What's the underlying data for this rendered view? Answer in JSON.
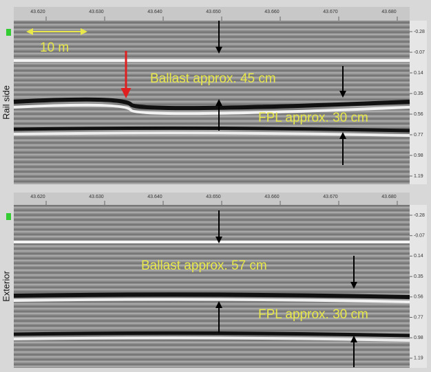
{
  "scale_bar": "10 m",
  "panels": [
    {
      "side_label": "Rail side",
      "x_ticks": [
        "43.620",
        "43.630",
        "43.640",
        "43.650",
        "43.660",
        "43.670",
        "43.680"
      ],
      "depth_ticks": [
        "-0.28",
        "-0.07",
        "0.14",
        "0.35",
        "0.56",
        "0.77",
        "0.98",
        "1.19"
      ],
      "annotations": [
        "Ballast approx. 45 cm",
        "FPL approx. 30 cm"
      ]
    },
    {
      "side_label": "Exterior",
      "x_ticks": [
        "43.620",
        "43.630",
        "43.640",
        "43.650",
        "43.660",
        "43.670",
        "43.680"
      ],
      "depth_ticks": [
        "-0.28",
        "-0.07",
        "0.14",
        "0.35",
        "0.56",
        "0.77",
        "0.98",
        "1.19"
      ],
      "annotations": [
        "Ballast approx. 57 cm",
        "FPL approx. 30 cm"
      ]
    }
  ]
}
